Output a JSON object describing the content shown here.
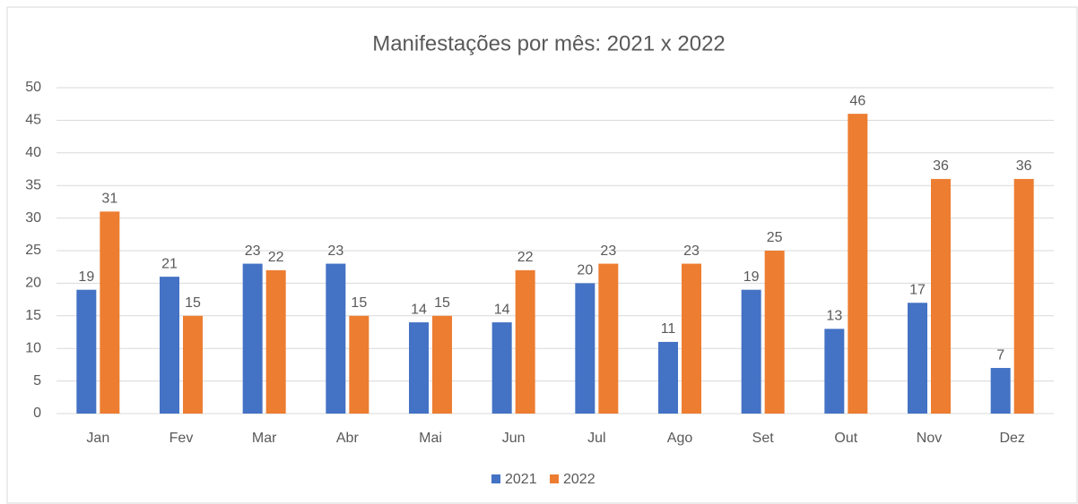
{
  "chart_data": {
    "type": "bar",
    "title": "Manifestações por mês: 2021 x 2022",
    "categories": [
      "Jan",
      "Fev",
      "Mar",
      "Abr",
      "Mai",
      "Jun",
      "Jul",
      "Ago",
      "Set",
      "Out",
      "Nov",
      "Dez"
    ],
    "series": [
      {
        "name": "2021",
        "color": "#4472c4",
        "values": [
          19,
          21,
          23,
          23,
          14,
          14,
          20,
          11,
          19,
          13,
          17,
          7
        ]
      },
      {
        "name": "2022",
        "color": "#ed7d31",
        "values": [
          31,
          15,
          22,
          15,
          15,
          22,
          23,
          23,
          25,
          46,
          36,
          36
        ]
      }
    ],
    "ylim": [
      0,
      50
    ],
    "yticks": [
      0,
      5,
      10,
      15,
      20,
      25,
      30,
      35,
      40,
      45,
      50
    ],
    "grid": true,
    "legend": "bottom"
  }
}
